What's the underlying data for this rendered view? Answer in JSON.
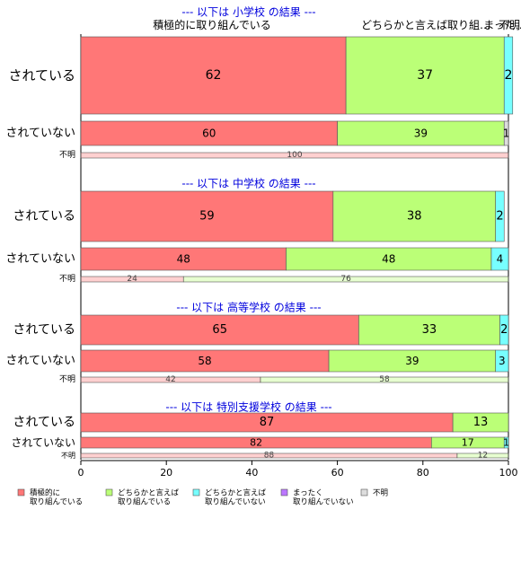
{
  "chart_data": {
    "type": "bar",
    "orientation": "horizontal",
    "stacked": true,
    "xlim": [
      0,
      100
    ],
    "x_ticks": [
      "0",
      "20",
      "40",
      "60",
      "80",
      "100"
    ],
    "column_headers": [
      "積極的に取り組んでいる",
      "どちらかと言えば取り組…",
      "まった…",
      "不明"
    ],
    "categories": [
      {
        "name": "積極的に取り組んでいる",
        "legend_label": [
          "積極的に",
          "取り組んでいる"
        ],
        "color": "#ff7777"
      },
      {
        "name": "どちらかと言えば取り組んでいる",
        "legend_label": [
          "どちらかと言えば",
          "取り組んでいる"
        ],
        "color": "#bbff77"
      },
      {
        "name": "どちらかと言えば取り組んでいない",
        "legend_label": [
          "どちらかと言えば",
          "取り組んでいない"
        ],
        "color": "#77ffff"
      },
      {
        "name": "まったく取り組んでいない",
        "legend_label": [
          "まったく",
          "取り組んでいない"
        ],
        "color": "#bb77ff"
      },
      {
        "name": "不明",
        "legend_label": [
          "不明"
        ],
        "color": "#dddddd"
      }
    ],
    "groups": [
      {
        "title": "--- 以下は 小学校 の結果 ---",
        "rows": [
          {
            "label": "されている",
            "values": [
              62,
              37,
              2,
              0,
              0
            ],
            "labels": [
              "62",
              "37",
              "2",
              "",
              ""
            ]
          },
          {
            "label": "されていない",
            "values": [
              60,
              39,
              0,
              0,
              1
            ],
            "labels": [
              "60",
              "39",
              "",
              "",
              "1"
            ]
          },
          {
            "label": "不明",
            "values": [
              100,
              0,
              0,
              0,
              0
            ],
            "labels": [
              "100",
              "",
              "",
              "",
              ""
            ]
          }
        ]
      },
      {
        "title": "--- 以下は 中学校 の結果 ---",
        "rows": [
          {
            "label": "されている",
            "values": [
              59,
              38,
              2,
              0,
              0
            ],
            "labels": [
              "59",
              "38",
              "2",
              "",
              ""
            ]
          },
          {
            "label": "されていない",
            "values": [
              48,
              48,
              4,
              0,
              0
            ],
            "labels": [
              "48",
              "48",
              "4",
              "",
              ""
            ]
          },
          {
            "label": "不明",
            "values": [
              24,
              76,
              0,
              0,
              0
            ],
            "labels": [
              "24",
              "76",
              "",
              "",
              ""
            ]
          }
        ]
      },
      {
        "title": "--- 以下は 高等学校 の結果 ---",
        "rows": [
          {
            "label": "されている",
            "values": [
              65,
              33,
              2,
              0,
              0
            ],
            "labels": [
              "65",
              "33",
              "2",
              "",
              ""
            ]
          },
          {
            "label": "されていない",
            "values": [
              58,
              39,
              3,
              0,
              0
            ],
            "labels": [
              "58",
              "39",
              "3",
              "",
              ""
            ]
          },
          {
            "label": "不明",
            "values": [
              42,
              58,
              0,
              0,
              0
            ],
            "labels": [
              "42",
              "58",
              "",
              "",
              ""
            ]
          }
        ]
      },
      {
        "title": "--- 以下は 特別支援学校 の結果 ---",
        "rows": [
          {
            "label": "されている",
            "values": [
              87,
              13,
              0,
              0,
              0
            ],
            "labels": [
              "87",
              "13",
              "",
              "",
              ""
            ]
          },
          {
            "label": "されていない",
            "values": [
              82,
              17,
              1,
              0,
              0
            ],
            "labels": [
              "82",
              "17",
              "1",
              "",
              ""
            ]
          },
          {
            "label": "不明",
            "values": [
              88,
              12,
              0,
              0,
              0
            ],
            "labels": [
              "88",
              "12",
              "",
              "",
              ""
            ]
          }
        ]
      }
    ]
  }
}
